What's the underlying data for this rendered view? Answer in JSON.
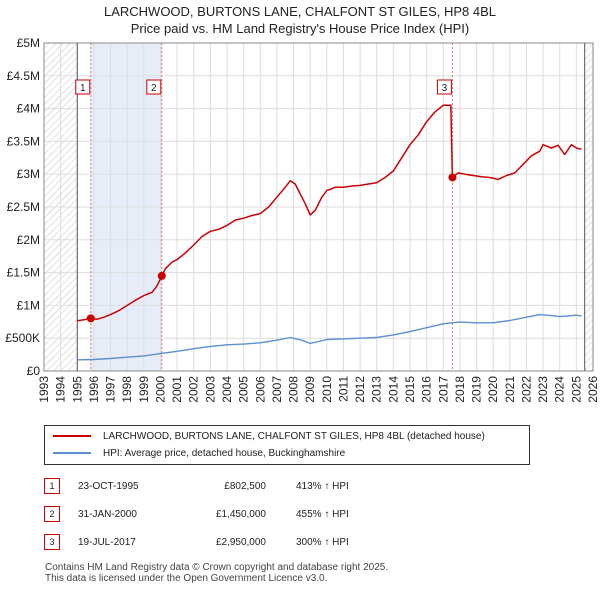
{
  "title": {
    "line1": "LARCHWOOD, BURTONS LANE, CHALFONT ST GILES, HP8 4BL",
    "line2": "Price paid vs. HM Land Registry's House Price Index (HPI)"
  },
  "chart_data": {
    "type": "line",
    "xlim": [
      1993,
      2026
    ],
    "ylim": [
      0,
      5000000
    ],
    "y_ticks": [
      0,
      500000,
      1000000,
      1500000,
      2000000,
      2500000,
      3000000,
      3500000,
      4000000,
      4500000,
      5000000
    ],
    "y_tick_labels": [
      "£0",
      "£500K",
      "£1M",
      "£1.5M",
      "£2M",
      "£2.5M",
      "£3M",
      "£3.5M",
      "£4M",
      "£4.5M",
      "£5M"
    ],
    "x_ticks": [
      1993,
      1994,
      1995,
      1996,
      1997,
      1998,
      1999,
      2000,
      2001,
      2002,
      2003,
      2004,
      2005,
      2006,
      2007,
      2008,
      2009,
      2010,
      2011,
      2012,
      2013,
      2014,
      2015,
      2016,
      2017,
      2018,
      2019,
      2020,
      2021,
      2022,
      2023,
      2024,
      2025,
      2026
    ],
    "x_tick_labels": [
      "1993",
      "1994",
      "1995",
      "1996",
      "1997",
      "1998",
      "1999",
      "2000",
      "2001",
      "2002",
      "2003",
      "2004",
      "2005",
      "2006",
      "2007",
      "2008",
      "2009",
      "2010",
      "2011",
      "2012",
      "2013",
      "2014",
      "2015",
      "2016",
      "2017",
      "2018",
      "2019",
      "2020",
      "2021",
      "2022",
      "2023",
      "2024",
      "2025",
      "2026"
    ],
    "data_start": 1995.0,
    "data_end": 2025.5,
    "grid": true,
    "series": [
      {
        "name": "LARCHWOOD, BURTONS LANE, CHALFONT ST GILES, HP8 4BL (detached house)",
        "color": "#cc0000",
        "points": [
          [
            1995.0,
            765000
          ],
          [
            1995.4,
            780000
          ],
          [
            1995.8,
            802500
          ],
          [
            1996.2,
            790000
          ],
          [
            1996.6,
            820000
          ],
          [
            1997.0,
            860000
          ],
          [
            1997.5,
            920000
          ],
          [
            1998.0,
            1000000
          ],
          [
            1998.5,
            1080000
          ],
          [
            1999.0,
            1150000
          ],
          [
            1999.5,
            1200000
          ],
          [
            1999.8,
            1300000
          ],
          [
            2000.08,
            1450000
          ],
          [
            2000.3,
            1560000
          ],
          [
            2000.7,
            1660000
          ],
          [
            2001.0,
            1700000
          ],
          [
            2001.5,
            1800000
          ],
          [
            2002.0,
            1920000
          ],
          [
            2002.5,
            2050000
          ],
          [
            2003.0,
            2130000
          ],
          [
            2003.5,
            2160000
          ],
          [
            2004.0,
            2220000
          ],
          [
            2004.5,
            2300000
          ],
          [
            2005.0,
            2330000
          ],
          [
            2005.5,
            2370000
          ],
          [
            2006.0,
            2400000
          ],
          [
            2006.5,
            2500000
          ],
          [
            2007.0,
            2650000
          ],
          [
            2007.5,
            2800000
          ],
          [
            2007.8,
            2900000
          ],
          [
            2008.1,
            2850000
          ],
          [
            2008.4,
            2700000
          ],
          [
            2008.7,
            2550000
          ],
          [
            2009.0,
            2380000
          ],
          [
            2009.3,
            2450000
          ],
          [
            2009.7,
            2650000
          ],
          [
            2010.0,
            2750000
          ],
          [
            2010.5,
            2800000
          ],
          [
            2011.0,
            2800000
          ],
          [
            2011.5,
            2820000
          ],
          [
            2012.0,
            2830000
          ],
          [
            2012.5,
            2850000
          ],
          [
            2013.0,
            2870000
          ],
          [
            2013.5,
            2950000
          ],
          [
            2014.0,
            3050000
          ],
          [
            2014.5,
            3250000
          ],
          [
            2015.0,
            3450000
          ],
          [
            2015.5,
            3600000
          ],
          [
            2016.0,
            3800000
          ],
          [
            2016.5,
            3950000
          ],
          [
            2017.0,
            4050000
          ],
          [
            2017.45,
            4050000
          ],
          [
            2017.55,
            2950000
          ],
          [
            2017.9,
            3020000
          ],
          [
            2018.3,
            3000000
          ],
          [
            2018.8,
            2980000
          ],
          [
            2019.3,
            2960000
          ],
          [
            2019.8,
            2950000
          ],
          [
            2020.3,
            2920000
          ],
          [
            2020.8,
            2980000
          ],
          [
            2021.3,
            3020000
          ],
          [
            2021.8,
            3150000
          ],
          [
            2022.3,
            3280000
          ],
          [
            2022.8,
            3350000
          ],
          [
            2023.0,
            3450000
          ],
          [
            2023.5,
            3400000
          ],
          [
            2023.9,
            3440000
          ],
          [
            2024.3,
            3300000
          ],
          [
            2024.7,
            3450000
          ],
          [
            2025.0,
            3400000
          ],
          [
            2025.3,
            3380000
          ]
        ]
      },
      {
        "name": "HPI: Average price, detached house, Buckinghamshire",
        "color": "#5b8fd0",
        "points": [
          [
            1995.0,
            170000
          ],
          [
            1996.0,
            175000
          ],
          [
            1997.0,
            190000
          ],
          [
            1998.0,
            210000
          ],
          [
            1999.0,
            230000
          ],
          [
            2000.0,
            265000
          ],
          [
            2001.0,
            300000
          ],
          [
            2002.0,
            340000
          ],
          [
            2003.0,
            375000
          ],
          [
            2004.0,
            400000
          ],
          [
            2005.0,
            410000
          ],
          [
            2006.0,
            430000
          ],
          [
            2007.0,
            470000
          ],
          [
            2007.8,
            510000
          ],
          [
            2008.5,
            470000
          ],
          [
            2009.0,
            420000
          ],
          [
            2009.5,
            450000
          ],
          [
            2010.0,
            480000
          ],
          [
            2011.0,
            490000
          ],
          [
            2012.0,
            500000
          ],
          [
            2013.0,
            510000
          ],
          [
            2014.0,
            550000
          ],
          [
            2015.0,
            600000
          ],
          [
            2016.0,
            660000
          ],
          [
            2017.0,
            720000
          ],
          [
            2017.5,
            735000
          ],
          [
            2018.0,
            745000
          ],
          [
            2019.0,
            735000
          ],
          [
            2020.0,
            735000
          ],
          [
            2021.0,
            770000
          ],
          [
            2022.0,
            820000
          ],
          [
            2022.8,
            860000
          ],
          [
            2023.5,
            845000
          ],
          [
            2024.0,
            830000
          ],
          [
            2024.5,
            840000
          ],
          [
            2025.0,
            850000
          ],
          [
            2025.3,
            840000
          ]
        ]
      }
    ],
    "sales": [
      {
        "num": "1",
        "year": 1995.81,
        "price": 802500,
        "date": "23-OCT-1995",
        "price_label": "£802,500",
        "hpi": "413% ↑ HPI"
      },
      {
        "num": "2",
        "year": 2000.08,
        "price": 1450000,
        "date": "31-JAN-2000",
        "price_label": "£1,450,000",
        "hpi": "455% ↑ HPI"
      },
      {
        "num": "3",
        "year": 2017.55,
        "price": 2950000,
        "date": "19-JUL-2017",
        "price_label": "£2,950,000",
        "hpi": "300% ↑ HPI"
      }
    ]
  },
  "legend": {
    "series1": "LARCHWOOD, BURTONS LANE, CHALFONT ST GILES, HP8 4BL (detached house)",
    "series2": "HPI: Average price, detached house, Buckinghamshire"
  },
  "footer": {
    "line1": "Contains HM Land Registry data © Crown copyright and database right 2025.",
    "line2": "This data is licensed under the Open Government Licence v3.0."
  }
}
